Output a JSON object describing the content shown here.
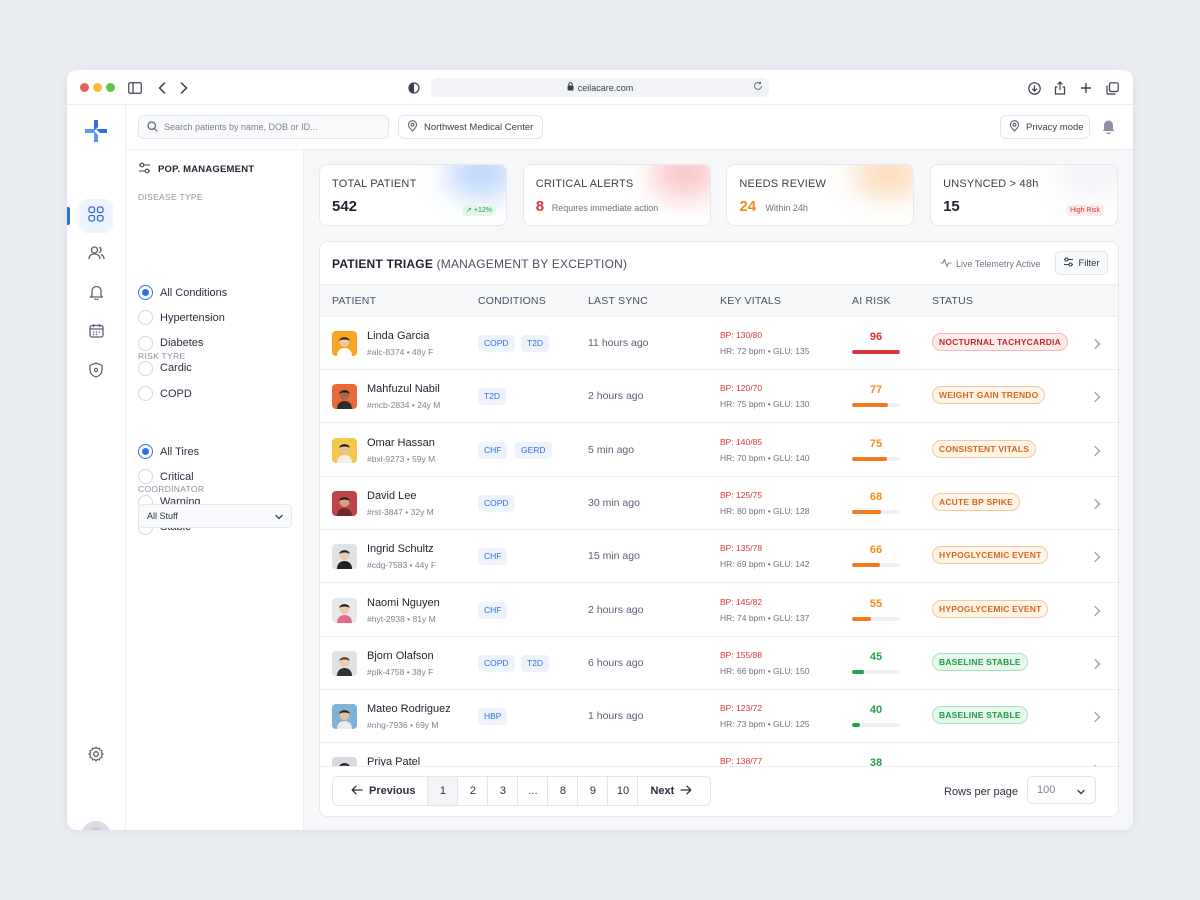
{
  "browser": {
    "url": "ceilacare.com"
  },
  "topbar": {
    "search_placeholder": "Search patients by name, DOB or ID...",
    "location": "Northwest Medical Center",
    "privacy": "Privacy mode"
  },
  "filters": {
    "title": "POP. MANAGEMENT",
    "disease_label": "DISEASE TYPE",
    "disease_options": [
      "All Conditions",
      "Hypertension",
      "Diabetes",
      "Cardic",
      "COPD"
    ],
    "disease_selected": "All Conditions",
    "risk_label": "RISK TYRE",
    "risk_options": [
      "All Tires",
      "Critical",
      "Warning",
      "Stable"
    ],
    "risk_selected": "All Tires",
    "coordinator_label": "COORDINATOR",
    "coordinator_value": "All Stuff"
  },
  "stats": [
    {
      "label": "TOTAL PATIENT",
      "value": "542",
      "badge": "+12%",
      "value_color": "#1f2430"
    },
    {
      "label": "CRITICAL ALERTS",
      "value": "8",
      "sub": "Requires immediate action",
      "value_color": "#d93636"
    },
    {
      "label": "NEEDS REVIEW",
      "value": "24",
      "sub": "Within 24h",
      "value_color": "#f28b1c"
    },
    {
      "label": "UNSYNCED > 48h",
      "value": "15",
      "badge": "High Risk",
      "value_color": "#1f2430"
    }
  ],
  "table": {
    "title_bold": "PATIENT TRIAGE",
    "title_rest": "(MANAGEMENT BY EXCEPTION)",
    "telemetry": "Live Telemetry Active",
    "filter_label": "Filter",
    "headers": [
      "PATIENT",
      "CONDITIONS",
      "LAST SYNC",
      "KEY VITALS",
      "AI RISK",
      "STATUS"
    ],
    "rows": [
      {
        "name": "Linda Garcia",
        "meta": "#alc-8374 • 48y F",
        "conditions": [
          "COPD",
          "T2D"
        ],
        "sync": "11 hours ago",
        "bp": "BP: 130/80",
        "hr": "HR: 72 bpm • GLU: 135",
        "risk": "96",
        "level": "critical",
        "status": "NOCTURNAL TACHYCARDIA"
      },
      {
        "name": "Mahfuzul Nabil",
        "meta": "#mcb-2834 • 24y M",
        "conditions": [
          "T2D"
        ],
        "sync": "2 hours ago",
        "bp": "BP: 120/70",
        "hr": "HR: 75 bpm • GLU: 130",
        "risk": "77",
        "level": "warning",
        "status": "WEIGHT GAIN TRENDO"
      },
      {
        "name": "Omar Hassan",
        "meta": "#bxl-9273 • 59y M",
        "conditions": [
          "CHF",
          "GERD"
        ],
        "sync": "5 min ago",
        "bp": "BP: 140/85",
        "hr": "HR: 70 bpm • GLU: 140",
        "risk": "75",
        "level": "warning",
        "status": "CONSISTENT VITALS"
      },
      {
        "name": "David Lee",
        "meta": "#rst-3847 • 32y M",
        "conditions": [
          "COPD"
        ],
        "sync": "30 min ago",
        "bp": "BP: 125/75",
        "hr": "HR: 80 bpm • GLU: 128",
        "risk": "68",
        "level": "warning",
        "status": "ACUTE BP SPIKE"
      },
      {
        "name": "Ingrid Schultz",
        "meta": "#cdg-7583 • 44y F",
        "conditions": [
          "CHF"
        ],
        "sync": "15 min ago",
        "bp": "BP: 135/78",
        "hr": "HR: 69 bpm • GLU: 142",
        "risk": "66",
        "level": "warning",
        "status": "HYPOGLYCEMIC EVENT"
      },
      {
        "name": "Naomi Nguyen",
        "meta": "#hyt-2938 • 81y M",
        "conditions": [
          "CHF"
        ],
        "sync": "2 hours ago",
        "bp": "BP: 145/82",
        "hr": "HR: 74 bpm • GLU: 137",
        "risk": "55",
        "level": "warning",
        "status": "HYPOGLYCEMIC EVENT"
      },
      {
        "name": "Bjorn Olafson",
        "meta": "#plk-4758 • 38y F",
        "conditions": [
          "COPD",
          "T2D"
        ],
        "sync": "6 hours ago",
        "bp": "BP: 155/88",
        "hr": "HR: 66 bpm • GLU: 150",
        "risk": "45",
        "level": "stable",
        "status": "BASELINE STABLE"
      },
      {
        "name": "Mateo Rodriguez",
        "meta": "#nhg-7936 • 69y M",
        "conditions": [
          "HBP"
        ],
        "sync": "1 hours ago",
        "bp": "BP: 123/72",
        "hr": "HR: 73 bpm • GLU: 125",
        "risk": "40",
        "level": "stable",
        "status": "BASELINE STABLE"
      },
      {
        "name": "Priya Patel",
        "meta": "",
        "conditions": [
          "",
          ""
        ],
        "sync": "",
        "bp": "BP: 138/77",
        "hr": "",
        "risk": "38",
        "level": "stable",
        "status": ""
      }
    ]
  },
  "pagination": {
    "previous": "Previous",
    "next": "Next",
    "pages": [
      "1",
      "2",
      "3",
      "...",
      "8",
      "9",
      "10"
    ],
    "current": "1",
    "rows_per_page_label": "Rows per page",
    "rows_per_page": "100"
  },
  "colors": {
    "accent": "#2f6fe4",
    "critical": "#d93636",
    "warning": "#f28b1c",
    "stable": "#22a34b"
  },
  "icons": {
    "rail": [
      "grid-icon",
      "users-icon",
      "bell-icon",
      "calendar-icon",
      "shield-icon",
      "gear-icon"
    ]
  }
}
